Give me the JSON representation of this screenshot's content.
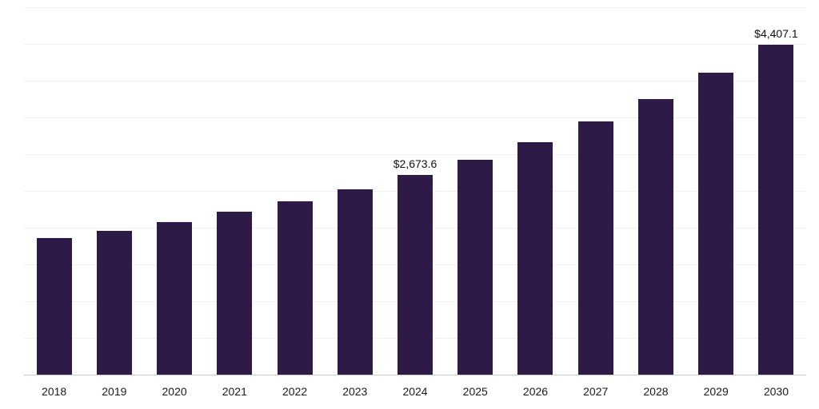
{
  "chart_data": {
    "type": "bar",
    "title": "",
    "xlabel": "",
    "ylabel": "",
    "categories": [
      "2018",
      "2019",
      "2020",
      "2021",
      "2022",
      "2023",
      "2024",
      "2025",
      "2026",
      "2027",
      "2028",
      "2029",
      "2030"
    ],
    "values": [
      1830,
      1925,
      2050,
      2180,
      2320,
      2480,
      2673.6,
      2880,
      3115,
      3390,
      3690,
      4040,
      4407.1
    ],
    "data_labels": {
      "2024": "$2,673.6",
      "2030": "$4,407.1"
    },
    "ylim": [
      0,
      4900
    ],
    "grid": true,
    "gridline_count": 10,
    "legend_position": "none",
    "colors": {
      "bar": "#2e1a47",
      "gridline": "#f2f2f2",
      "baseline": "#c9c9c9",
      "label_text": "#111111",
      "tick_text": "#1a1a1a",
      "background": "#ffffff"
    }
  }
}
